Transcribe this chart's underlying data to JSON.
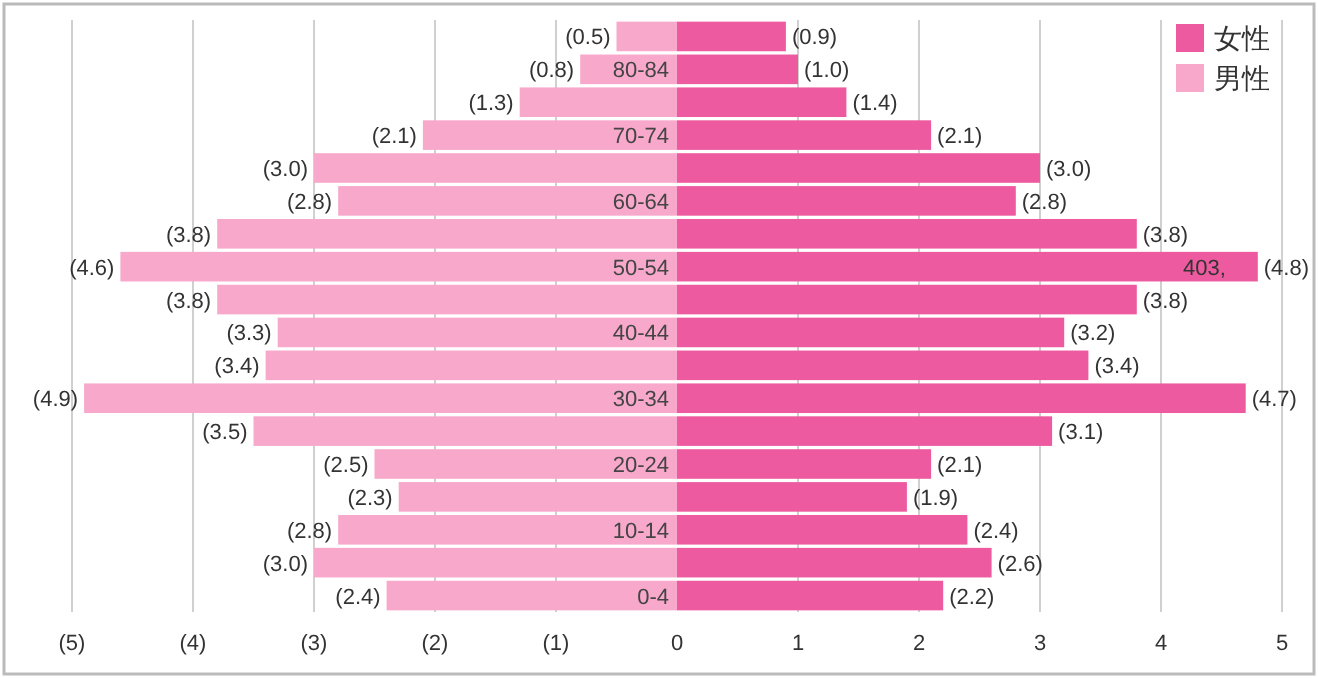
{
  "chart_data": {
    "type": "bar",
    "orientation": "horizontal",
    "stacked": true,
    "categories": [
      null,
      "80-84",
      null,
      "70-74",
      null,
      "60-64",
      null,
      "50-54",
      null,
      "40-44",
      null,
      "30-34",
      null,
      "20-24",
      null,
      "10-14",
      null,
      "0-4"
    ],
    "series": [
      {
        "name": "女性",
        "color": "#ee5a9f",
        "values": [
          0.9,
          1.0,
          1.4,
          2.1,
          3.0,
          2.8,
          3.8,
          4.8,
          3.8,
          3.2,
          3.4,
          4.7,
          3.1,
          2.1,
          1.9,
          2.4,
          2.6,
          2.2
        ],
        "value_labels": [
          "(0.9)",
          "(1.0)",
          "(1.4)",
          "(2.1)",
          "(3.0)",
          "(2.8)",
          "(3.8)",
          "(4.8)",
          "(3.8)",
          "(3.2)",
          "(3.4)",
          "(4.7)",
          "(3.1)",
          "(2.1)",
          "(1.9)",
          "(2.4)",
          "(2.6)",
          "(2.2)"
        ]
      },
      {
        "name": "男性",
        "color": "#f7a8cb",
        "values": [
          -0.5,
          -0.8,
          -1.3,
          -2.1,
          -3.0,
          -2.8,
          -3.8,
          -4.6,
          -3.8,
          -3.3,
          -3.4,
          -4.9,
          -3.5,
          -2.5,
          -2.3,
          -2.8,
          -3.0,
          -2.4
        ],
        "value_labels": [
          "(0.5)",
          "(0.8)",
          "(1.3)",
          "(2.1)",
          "(3.0)",
          "(2.8)",
          "(3.8)",
          "(4.6)",
          "(3.8)",
          "(3.3)",
          "(3.4)",
          "(4.9)",
          "(3.5)",
          "(2.5)",
          "(2.3)",
          "(2.8)",
          "(3.0)",
          "(2.4)"
        ]
      }
    ],
    "annotations": [
      {
        "text": "403,",
        "x": 4.8,
        "y": "50-54"
      }
    ],
    "xlim": [
      -5,
      5
    ],
    "xticks": [
      {
        "value": -5,
        "label": "(5)"
      },
      {
        "value": -4,
        "label": "(4)"
      },
      {
        "value": -3,
        "label": "(3)"
      },
      {
        "value": -2,
        "label": "(2)"
      },
      {
        "value": -1,
        "label": "(1)"
      },
      0,
      1,
      2,
      3,
      4,
      5
    ],
    "grid": "x",
    "legend": "top right"
  }
}
